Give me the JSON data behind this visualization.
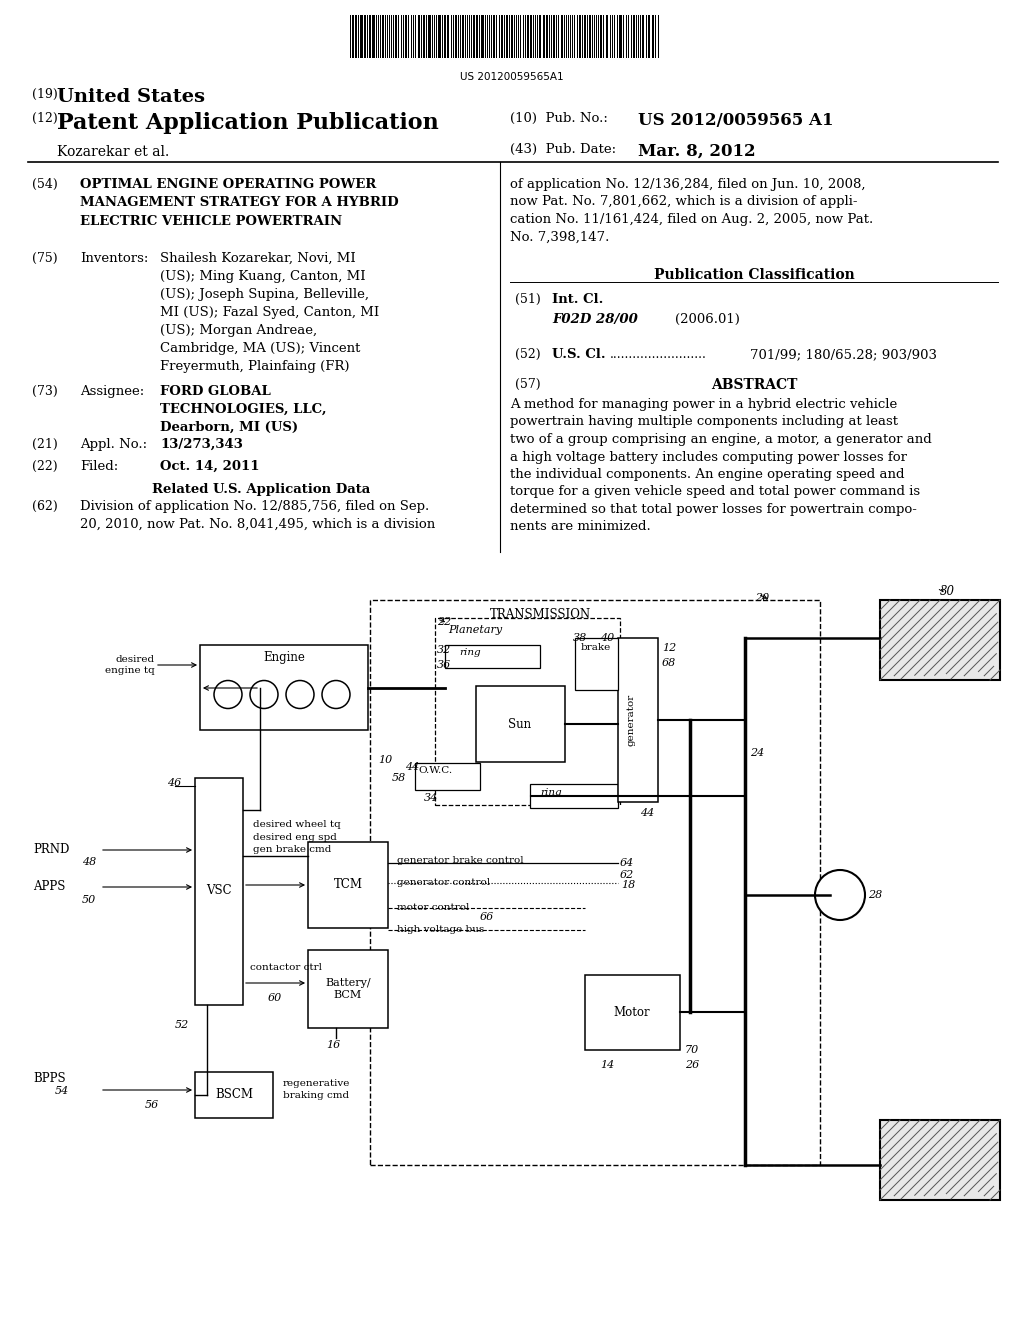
{
  "bg_color": "#ffffff",
  "barcode_text": "US 20120059565A1",
  "title_19": "(19) United States",
  "title_12": "(12) Patent Application Publication",
  "pub_no_label": "(10) Pub. No.:",
  "pub_no": "US 2012/0059565 A1",
  "inventor_label": "Kozarekar et al.",
  "pub_date_label": "(43) Pub. Date:",
  "pub_date": "Mar. 8, 2012",
  "field54_label": "(54)",
  "field54_title": "OPTIMAL ENGINE OPERATING POWER\nMANAGEMENT STRATEGY FOR A HYBRID\nELECTRIC VEHICLE POWERTRAIN",
  "field75_label": "(75)",
  "field75_name": "Inventors:",
  "field75_value": "Shailesh Kozarekar, Novi, MI\n(US); Ming Kuang, Canton, MI\n(US); Joseph Supina, Belleville,\nMI (US); Fazal Syed, Canton, MI\n(US); Morgan Andreae,\nCambridge, MA (US); Vincent\nFreyermuth, Plainfaing (FR)",
  "field73_label": "(73)",
  "field73_name": "Assignee:",
  "field73_value": "FORD GLOBAL\nTECHNOLOGIES, LLC,\nDearborn, MI (US)",
  "field21_label": "(21)",
  "field21_name": "Appl. No.:",
  "field21_value": "13/273,343",
  "field22_label": "(22)",
  "field22_name": "Filed:",
  "field22_value": "Oct. 14, 2011",
  "related_title": "Related U.S. Application Data",
  "field62_label": "(62)",
  "field62_value": "Division of application No. 12/885,756, filed on Sep.\n20, 2010, now Pat. No. 8,041,495, which is a division",
  "right_col_continuation": "of application No. 12/136,284, filed on Jun. 10, 2008,\nnow Pat. No. 7,801,662, which is a division of appli-\ncation No. 11/161,424, filed on Aug. 2, 2005, now Pat.\nNo. 7,398,147.",
  "pub_class_title": "Publication Classification",
  "field51_label": "(51)",
  "field51_name": "Int. Cl.",
  "field51_value": "F02D 28/00",
  "field51_year": "(2006.01)",
  "field52_label": "(52)",
  "field52_name": "U.S. Cl.",
  "field52_dots": ".........................",
  "field52_value": "701/99; 180/65.28; 903/903",
  "field57_label": "(57)",
  "field57_name": "ABSTRACT",
  "abstract_text": "A method for managing power in a hybrid electric vehicle\npowertrain having multiple components including at least\ntwo of a group comprising an engine, a motor, a generator and\na high voltage battery includes computing power losses for\nthe individual components. An engine operating speed and\ntorque for a given vehicle speed and total power command is\ndetermined so that total power losses for powertrain compo-\nnents are minimized."
}
